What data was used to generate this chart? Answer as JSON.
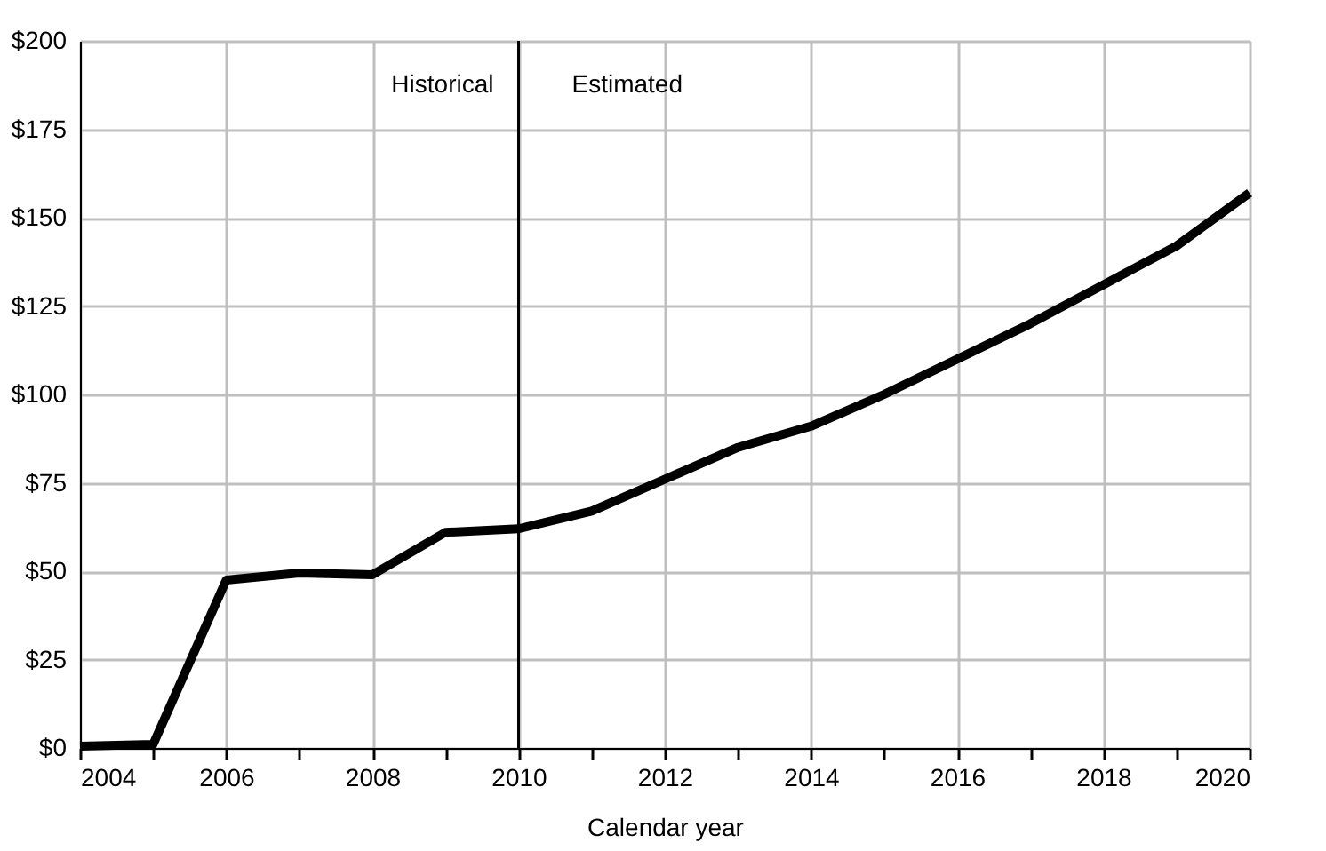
{
  "chart_data": {
    "type": "line",
    "xlabel": "Calendar year",
    "x": [
      2004,
      2005,
      2006,
      2007,
      2008,
      2009,
      2010,
      2011,
      2012,
      2013,
      2014,
      2015,
      2016,
      2017,
      2018,
      2019,
      2020
    ],
    "series": [
      {
        "color": "#000000",
        "values": [
          0.5,
          1,
          47.5,
          49.5,
          49,
          61,
          62,
          67,
          76,
          85,
          91,
          100,
          110,
          120,
          131,
          142,
          157
        ]
      }
    ],
    "xlim": [
      2004,
      2020
    ],
    "xticks": [
      2004,
      {
        "value": 2005,
        "label": null
      },
      2006,
      {
        "value": 2007,
        "label": null
      },
      2008,
      {
        "value": 2009,
        "label": null
      },
      2010,
      {
        "value": 2011,
        "label": null
      },
      2012,
      {
        "value": 2013,
        "label": null
      },
      2014,
      {
        "value": 2015,
        "label": null
      },
      2016,
      {
        "value": 2017,
        "label": null
      },
      2018,
      {
        "value": 2019,
        "label": null
      },
      2020
    ],
    "ylim": [
      0,
      200
    ],
    "yticks": [
      {
        "value": 0,
        "label": "$0"
      },
      {
        "value": 25,
        "label": "$25"
      },
      {
        "value": 50,
        "label": "$50"
      },
      {
        "value": 75,
        "label": "$75"
      },
      {
        "value": 100,
        "label": "$100"
      },
      {
        "value": 125,
        "label": "$125"
      },
      {
        "value": 150,
        "label": "$150"
      },
      {
        "value": 175,
        "label": "$175"
      },
      {
        "value": 200,
        "label": "$200"
      }
    ],
    "ref_lines": [
      {
        "axis": "x",
        "value": 2010,
        "color": "#000000"
      }
    ],
    "annotations": [
      "Historical",
      "Estimated"
    ],
    "grid": true,
    "marker": "none",
    "line_style": "solid"
  }
}
